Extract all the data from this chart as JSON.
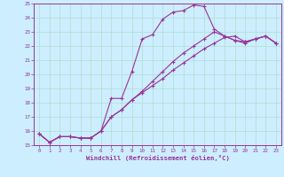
{
  "xlabel": "Windchill (Refroidissement éolien,°C)",
  "background_color": "#cceeff",
  "grid_color": "#b0ddd0",
  "line_color": "#993399",
  "spine_color": "#993399",
  "xlim": [
    -0.5,
    23.5
  ],
  "ylim": [
    15,
    25
  ],
  "xticks": [
    0,
    1,
    2,
    3,
    4,
    5,
    6,
    7,
    8,
    9,
    10,
    11,
    12,
    13,
    14,
    15,
    16,
    17,
    18,
    19,
    20,
    21,
    22,
    23
  ],
  "yticks": [
    15,
    16,
    17,
    18,
    19,
    20,
    21,
    22,
    23,
    24,
    25
  ],
  "tick_fontsize": 4.2,
  "xlabel_fontsize": 5.2,
  "series": [
    [
      15.8,
      15.2,
      15.6,
      15.6,
      15.5,
      15.5,
      16.0,
      18.3,
      18.3,
      20.2,
      22.5,
      22.8,
      23.9,
      24.4,
      24.5,
      24.9,
      24.8,
      23.2,
      22.7,
      22.4,
      22.3,
      22.5,
      22.7,
      22.2
    ],
    [
      15.8,
      15.2,
      15.6,
      15.6,
      15.5,
      15.5,
      16.0,
      17.0,
      17.5,
      18.2,
      18.7,
      19.2,
      19.7,
      20.3,
      20.8,
      21.3,
      21.8,
      22.2,
      22.6,
      22.7,
      22.3,
      22.5,
      22.7,
      22.2
    ],
    [
      15.8,
      15.2,
      15.6,
      15.6,
      15.5,
      15.5,
      16.0,
      17.0,
      17.5,
      18.2,
      18.8,
      19.5,
      20.2,
      20.9,
      21.5,
      22.0,
      22.5,
      23.0,
      22.7,
      22.4,
      22.2,
      22.5,
      22.7,
      22.2
    ]
  ],
  "marker": "+",
  "markersize": 3.0,
  "linewidth": 0.8
}
